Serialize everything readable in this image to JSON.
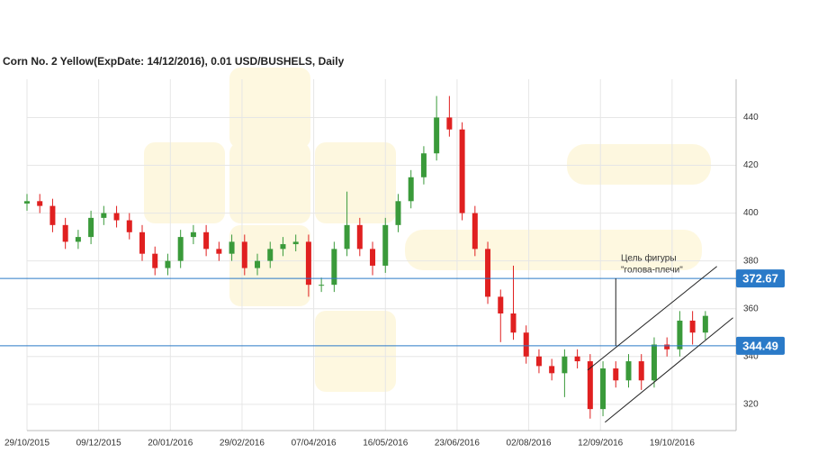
{
  "chart_data": {
    "type": "candlestick",
    "title": "Corn  No. 2 Yellow(ExpDate: 14/12/2016), 0.01 USD/BUSHELS, Daily",
    "up_color": "#3a9a3a",
    "down_color": "#e02020",
    "xlim": [
      -1,
      276
    ],
    "ylim": [
      309,
      456
    ],
    "yticks": [
      320,
      340,
      360,
      380,
      400,
      420,
      440
    ],
    "xticks": [
      {
        "value": 0,
        "label": "29/10/2015"
      },
      {
        "value": 28,
        "label": "09/12/2015"
      },
      {
        "value": 56,
        "label": "20/01/2016"
      },
      {
        "value": 84,
        "label": "29/02/2016"
      },
      {
        "value": 112,
        "label": "07/04/2016"
      },
      {
        "value": 140,
        "label": "16/05/2016"
      },
      {
        "value": 168,
        "label": "23/06/2016"
      },
      {
        "value": 196,
        "label": "02/08/2016"
      },
      {
        "value": 224,
        "label": "12/09/2016"
      },
      {
        "value": 252,
        "label": "19/10/2016"
      }
    ],
    "grid": true,
    "x": [
      0,
      5,
      10,
      15,
      20,
      25,
      30,
      35,
      40,
      45,
      50,
      55,
      60,
      65,
      70,
      75,
      80,
      85,
      90,
      95,
      100,
      105,
      110,
      115,
      120,
      125,
      130,
      135,
      140,
      145,
      150,
      155,
      160,
      165,
      170,
      175,
      180,
      185,
      190,
      195,
      200,
      205,
      210,
      215,
      220,
      225,
      230,
      235,
      240,
      245,
      250,
      255,
      260,
      265
    ],
    "open": [
      404,
      405,
      403,
      395,
      388,
      390,
      398,
      400,
      397,
      392,
      383,
      377,
      380,
      390,
      392,
      385,
      383,
      388,
      377,
      380,
      385,
      387,
      388,
      370,
      370,
      385,
      395,
      385,
      378,
      395,
      405,
      415,
      425,
      440,
      435,
      400,
      385,
      365,
      358,
      350,
      340,
      336,
      333,
      340,
      338,
      318,
      335,
      330,
      338,
      330,
      345,
      343,
      355,
      350
    ],
    "high": [
      408,
      408,
      406,
      398,
      393,
      401,
      403,
      403,
      400,
      395,
      386,
      383,
      393,
      395,
      395,
      388,
      391,
      391,
      383,
      388,
      390,
      391,
      391,
      373,
      388,
      409,
      398,
      388,
      398,
      408,
      418,
      428,
      449,
      449,
      438,
      403,
      388,
      368,
      378,
      353,
      343,
      339,
      343,
      343,
      341,
      338,
      338,
      341,
      341,
      348,
      348,
      359,
      359,
      359
    ],
    "low": [
      401,
      400,
      392,
      385,
      385,
      387,
      395,
      394,
      389,
      380,
      374,
      374,
      377,
      387,
      382,
      380,
      380,
      374,
      374,
      377,
      382,
      384,
      365,
      367,
      367,
      382,
      382,
      374,
      375,
      392,
      402,
      412,
      422,
      432,
      397,
      382,
      362,
      346,
      347,
      337,
      333,
      330,
      323,
      335,
      314,
      315,
      327,
      327,
      326,
      327,
      340,
      340,
      345,
      347
    ],
    "close": [
      405,
      403,
      395,
      388,
      390,
      398,
      400,
      397,
      392,
      383,
      377,
      380,
      390,
      392,
      385,
      383,
      388,
      377,
      380,
      385,
      387,
      388,
      370,
      370,
      385,
      395,
      385,
      378,
      395,
      405,
      415,
      425,
      440,
      435,
      400,
      385,
      365,
      358,
      350,
      340,
      336,
      333,
      340,
      338,
      318,
      335,
      330,
      338,
      330,
      345,
      343,
      355,
      350,
      357
    ],
    "levels": [
      {
        "value": 372.67,
        "label": "372.67"
      },
      {
        "value": 344.49,
        "label": "344.49"
      }
    ],
    "level_color": "#2a7ac8",
    "trend_lines": [
      {
        "x": [
          219,
          269.5
        ],
        "y": [
          334.3,
          377.7
        ]
      },
      {
        "x": [
          225.8,
          275.8
        ],
        "y": [
          312.5,
          356.2
        ]
      }
    ],
    "target_line": {
      "x": 230,
      "y": [
        372.67,
        344.49
      ]
    },
    "annotation": [
      "Цель фигуры",
      "\"голова-плечи\""
    ]
  }
}
